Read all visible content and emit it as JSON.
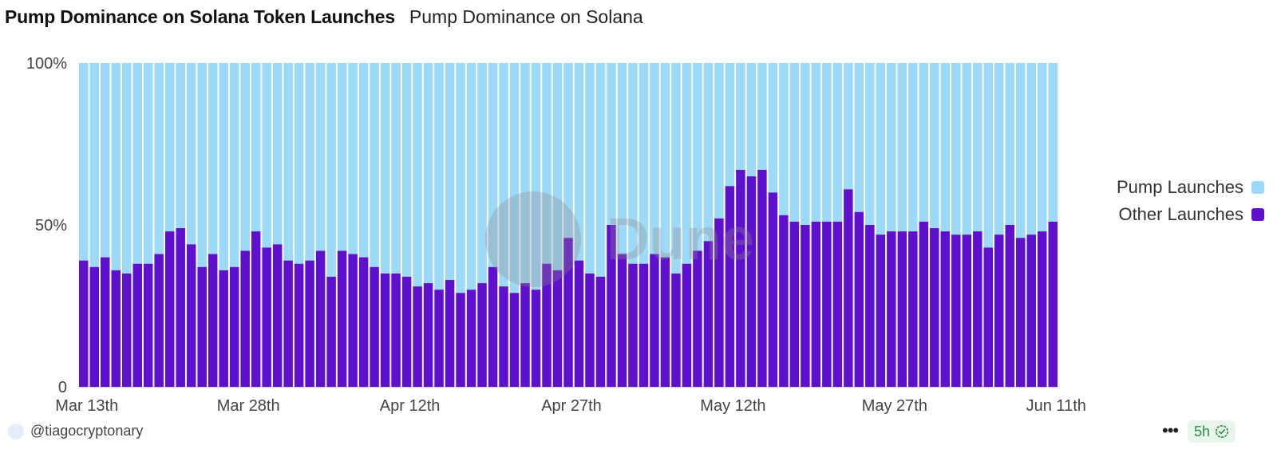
{
  "header": {
    "title": "Pump Dominance on Solana Token Launches",
    "subtitle": "Pump Dominance on Solana"
  },
  "legend": [
    {
      "label": "Pump Launches",
      "color": "#9dd9f9"
    },
    {
      "label": "Other Launches",
      "color": "#5f0fce"
    }
  ],
  "footer": {
    "username": "@tiagocryptonary",
    "age_badge": "5h",
    "more_icon": "more-horizontal-icon",
    "check_icon": "verified-check-icon"
  },
  "watermark": "Dune",
  "chart_data": {
    "type": "bar",
    "stacked": true,
    "x_start": "Mar 13",
    "x_tick_labels": [
      "Mar 13th",
      "Mar 28th",
      "Apr 12th",
      "Apr 27th",
      "May 12th",
      "May 27th",
      "Jun 11th"
    ],
    "y_tick_labels": [
      "0",
      "50%",
      "100%"
    ],
    "ylim": [
      0,
      100
    ],
    "grid": false,
    "legend_position": "right",
    "series": [
      {
        "name": "Pump Launches",
        "color": "#9dd9f9",
        "derived": "100 - Other Launches"
      },
      {
        "name": "Other Launches",
        "color": "#5f0fce",
        "values": [
          39,
          37,
          40,
          36,
          35,
          38,
          38,
          41,
          48,
          49,
          44,
          37,
          41,
          36,
          37,
          42,
          48,
          43,
          44,
          39,
          38,
          39,
          42,
          34,
          42,
          41,
          40,
          37,
          35,
          35,
          34,
          31,
          32,
          30,
          33,
          29,
          30,
          32,
          37,
          31,
          29,
          32,
          30,
          38,
          36,
          46,
          39,
          35,
          34,
          50,
          41,
          38,
          38,
          41,
          40,
          35,
          38,
          42,
          45,
          52,
          62,
          67,
          65,
          67,
          60,
          53,
          51,
          50,
          51,
          51,
          51,
          61,
          54,
          50,
          47,
          48,
          48,
          48,
          51,
          49,
          48,
          47,
          47,
          48,
          43,
          47,
          50,
          46,
          47,
          48,
          51
        ]
      }
    ]
  }
}
